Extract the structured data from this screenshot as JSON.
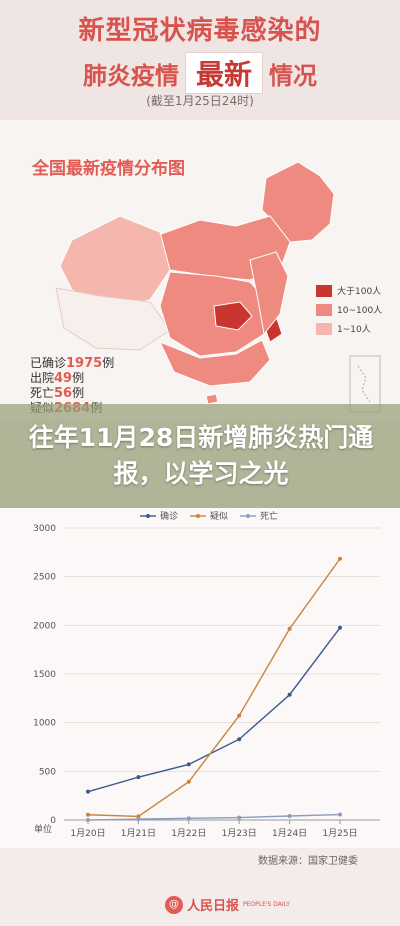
{
  "header": {
    "title_line1": "新型冠状病毒感染的",
    "title_line2_left": "肺炎疫情",
    "title_line2_badge": "最新",
    "title_line2_right": "情况",
    "date_note": "(截至1月25日24时)"
  },
  "map": {
    "title": "全国最新疫情分布图",
    "stats": [
      {
        "label": "已确诊",
        "value": "1975",
        "unit": "例"
      },
      {
        "label": "出院",
        "value": "49",
        "unit": "例"
      },
      {
        "label": "死亡",
        "value": "56",
        "unit": "例"
      },
      {
        "label": "疑似",
        "value": "2684",
        "unit": "例"
      }
    ],
    "legend": [
      {
        "label": "大于100人",
        "color": "#c9352f"
      },
      {
        "label": "10~100人",
        "color": "#ee8a80"
      },
      {
        "label": "1~10人",
        "color": "#f5b6ae"
      }
    ]
  },
  "overlay": {
    "headline": "往年11月28日新增肺炎热门通报，以学习之光"
  },
  "chart_data": {
    "type": "line",
    "categories": [
      "1月20日",
      "1月21日",
      "1月22日",
      "1月23日",
      "1月24日",
      "1月25日"
    ],
    "series": [
      {
        "name": "确诊",
        "color": "#3b5a8c",
        "values": [
          291,
          440,
          571,
          830,
          1287,
          1975
        ]
      },
      {
        "name": "疑似",
        "color": "#c8843c",
        "values": [
          54,
          37,
          393,
          1072,
          1965,
          2684
        ]
      },
      {
        "name": "死亡",
        "color": "#8f9cc0",
        "values": [
          0,
          9,
          17,
          25,
          41,
          56
        ]
      }
    ],
    "yticks": [
      "0",
      "500",
      "1000",
      "1500",
      "2000",
      "2500",
      "3000"
    ],
    "ylim": [
      0,
      3000
    ],
    "y_unit": "单位"
  },
  "source": "数据来源：国家卫健委",
  "logo": {
    "text": "人民日报",
    "sub": "PEOPLE'S DAILY"
  }
}
